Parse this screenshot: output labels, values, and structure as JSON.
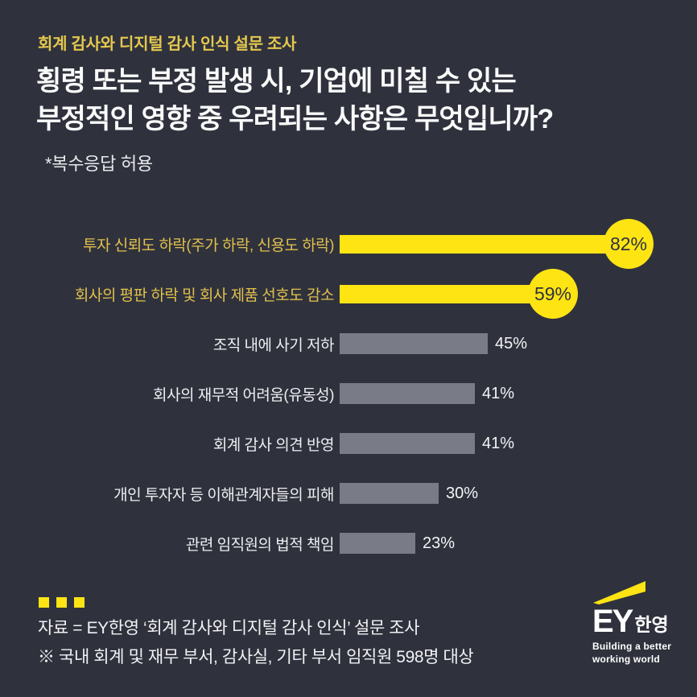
{
  "colors": {
    "background": "#2f323d",
    "accent_yellow": "#ffe414",
    "gold_text": "#e2c04c",
    "gray_bar": "#797b87",
    "white_text": "#f4f4f6"
  },
  "header": {
    "eyebrow": "회계 감사와 디지털 감사 인식 설문 조사",
    "title_line1": "횡령 또는 부정 발생 시, 기업에 미칠 수 있는",
    "title_line2": "부정적인 영향 중 우려되는 사항은 무엇입니까?",
    "note": "*복수응답 허용"
  },
  "chart_data": {
    "type": "bar",
    "orientation": "horizontal",
    "title": "횡령 또는 부정 발생 시, 기업에 미칠 수 있는 부정적인 영향 중 우려되는 사항은 무엇입니까?",
    "note": "*복수응답 허용",
    "categories": [
      "투자 신뢰도 하락(주가 하락, 신용도 하락)",
      "회사의 평판 하락 및 회사 제품 선호도 감소",
      "조직 내에 사기 저하",
      "회사의 재무적 어려움(유동성)",
      "회계 감사 의견 반영",
      "개인 투자자 등 이해관계자들의 피해",
      "관련 임직원의 법적 책임"
    ],
    "values": [
      82,
      59,
      45,
      41,
      41,
      30,
      23
    ],
    "value_labels": [
      "82%",
      "59%",
      "45%",
      "41%",
      "41%",
      "30%",
      "23%"
    ],
    "highlighted": [
      true,
      true,
      false,
      false,
      false,
      false,
      false
    ],
    "unit": "%",
    "xlim": [
      0,
      100
    ],
    "grid": false,
    "legend": false
  },
  "footer": {
    "source_line1": "자료 = EY한영 ‘회계 감사와 디지털 감사 인식’ 설문 조사",
    "source_line2": "※ 국내 회계 및 재무 부서, 감사실, 기타 부서 임직원 598명 대상"
  },
  "logo": {
    "brand": "EY",
    "brand_kr": "한영",
    "tagline_line1": "Building a better",
    "tagline_line2": "working world"
  }
}
